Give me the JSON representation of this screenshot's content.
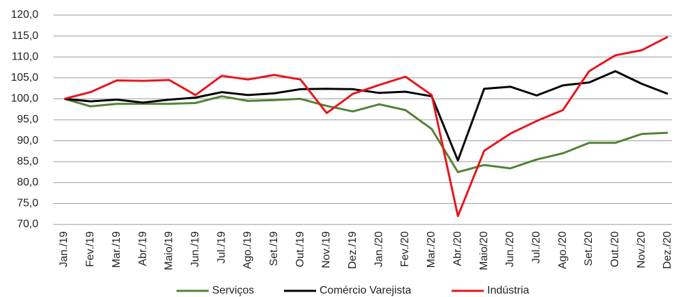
{
  "chart_data": {
    "type": "line",
    "categories": [
      "Jan./19",
      "Fev./19",
      "Mar./19",
      "Abr./19",
      "Maio/19",
      "Jun./19",
      "Jul./19",
      "Ago./19",
      "Set./19",
      "Out./19",
      "Nov./19",
      "Dez./19",
      "Jan./20",
      "Fev./20",
      "Mar./20",
      "Abr./20",
      "Maio/20",
      "Jun./20",
      "Jul./20",
      "Ago./20",
      "Set./20",
      "Out./20",
      "Nov./20",
      "Dez./20"
    ],
    "series": [
      {
        "name": "Serviços",
        "color": "#538135",
        "values": [
          100.0,
          98.2,
          98.8,
          98.8,
          98.8,
          99.0,
          100.6,
          99.5,
          99.7,
          100.0,
          98.3,
          97.0,
          98.7,
          97.3,
          92.8,
          82.5,
          84.2,
          83.4,
          85.5,
          87.0,
          89.5,
          89.5,
          91.6,
          91.9
        ]
      },
      {
        "name": "Comércio Varejista",
        "color": "#000000",
        "values": [
          100.0,
          99.4,
          99.8,
          99.1,
          99.8,
          100.3,
          101.6,
          100.9,
          101.3,
          102.3,
          102.4,
          102.3,
          101.4,
          101.7,
          100.6,
          85.3,
          102.4,
          102.9,
          100.8,
          103.2,
          103.9,
          106.6,
          103.6,
          101.2
        ]
      },
      {
        "name": "Indústria",
        "color": "#e8141b",
        "values": [
          100.0,
          101.6,
          104.4,
          104.3,
          104.5,
          100.9,
          105.5,
          104.6,
          105.7,
          104.6,
          96.6,
          101.2,
          103.3,
          105.3,
          100.9,
          72.0,
          87.6,
          91.7,
          94.7,
          97.3,
          106.6,
          110.4,
          111.6,
          114.8
        ]
      }
    ],
    "ylim": [
      70,
      120
    ],
    "yticks": [
      {
        "value": 70,
        "label": "70,0"
      },
      {
        "value": 75,
        "label": "75,0"
      },
      {
        "value": 80,
        "label": "80,0"
      },
      {
        "value": 85,
        "label": "85,0"
      },
      {
        "value": 90,
        "label": "90,0"
      },
      {
        "value": 95,
        "label": "95,0"
      },
      {
        "value": 100,
        "label": "100,0"
      },
      {
        "value": 105,
        "label": "105,0"
      },
      {
        "value": 110,
        "label": "110,0"
      },
      {
        "value": 115,
        "label": "115,0"
      },
      {
        "value": 120,
        "label": "120,0"
      }
    ],
    "grid": true
  }
}
